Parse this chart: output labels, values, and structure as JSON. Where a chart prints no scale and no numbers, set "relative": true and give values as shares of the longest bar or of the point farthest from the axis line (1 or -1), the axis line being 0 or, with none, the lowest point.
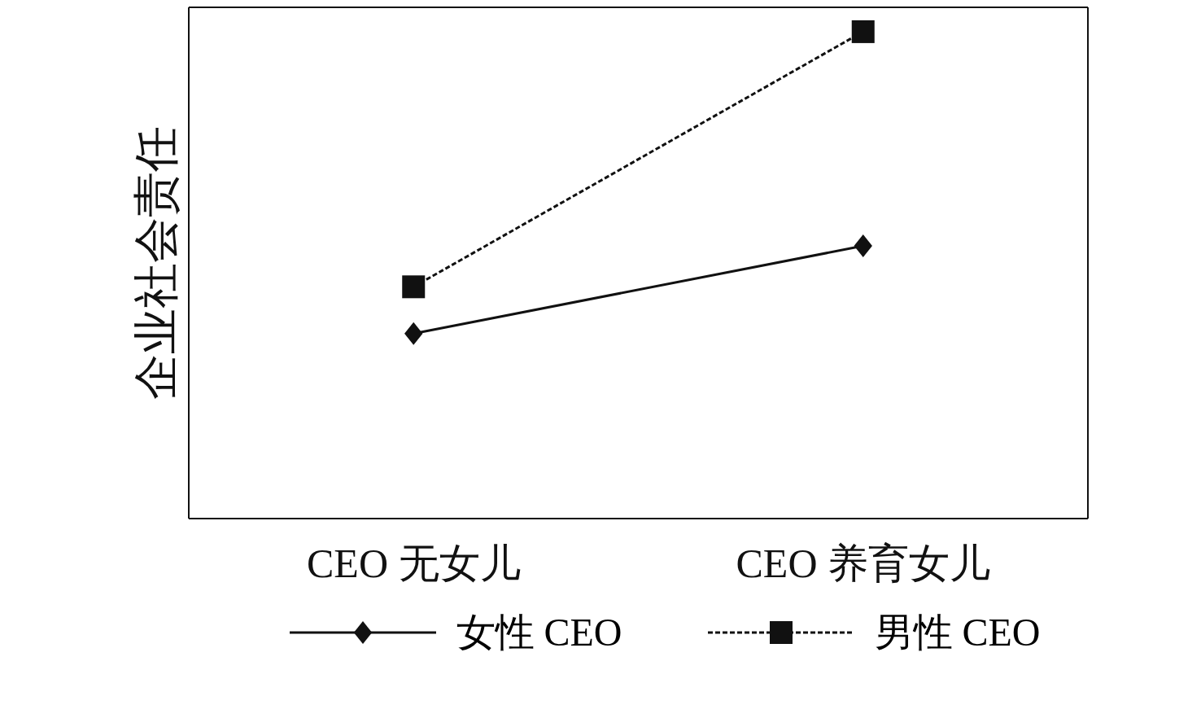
{
  "chart_data": {
    "type": "line",
    "ylabel": "企业社会责任",
    "categories": [
      "CEO 无女儿",
      "CEO 养育女儿"
    ],
    "relative": true,
    "grid": false,
    "legend": "bottom",
    "series": [
      {
        "name": "女性 CEO",
        "color": "#111111",
        "values": [
          0.38,
          0.56
        ],
        "marker": "diamond",
        "line_style": "solid"
      },
      {
        "name": "男性 CEO",
        "color": "#111111",
        "values": [
          0.476,
          1
        ],
        "marker": "square",
        "line_style": "dashed"
      }
    ]
  }
}
